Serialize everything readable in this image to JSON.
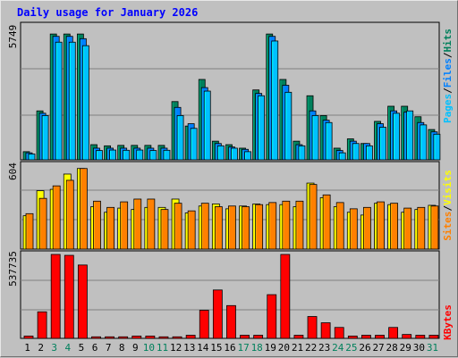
{
  "title": "Daily usage for January 2026",
  "colors": {
    "hits": "#00805c",
    "files": "#0080ff",
    "pages": "#00c0ff",
    "visits": "#ffff00",
    "sites": "#ff8000",
    "kbytes": "#ff0000",
    "title": "#0000ff",
    "weekend_day": "#00805c"
  },
  "chart_data": [
    {
      "type": "bar",
      "panel": "hits_files_pages",
      "categories": [
        "1",
        "2",
        "3",
        "4",
        "5",
        "6",
        "7",
        "8",
        "9",
        "10",
        "11",
        "12",
        "13",
        "14",
        "15",
        "16",
        "17",
        "18",
        "19",
        "20",
        "21",
        "22",
        "23",
        "24",
        "25",
        "26",
        "27",
        "28",
        "29",
        "30",
        "31"
      ],
      "weekend_days": [
        "3",
        "4",
        "10",
        "11",
        "17",
        "18",
        "24",
        "25",
        "31"
      ],
      "ymax_label": "5749",
      "ylim": [
        0,
        5749
      ],
      "series": [
        {
          "name": "Hits",
          "values": [
            350,
            2100,
            5400,
            5400,
            5400,
            650,
            600,
            620,
            620,
            620,
            620,
            2500,
            1450,
            3450,
            800,
            650,
            500,
            3000,
            5400,
            3450,
            800,
            2750,
            1900,
            500,
            900,
            700,
            1650,
            2300,
            2300,
            1850,
            1300
          ]
        },
        {
          "name": "Files",
          "values": [
            300,
            2000,
            5300,
            5300,
            5200,
            500,
            500,
            500,
            500,
            500,
            500,
            2250,
            1550,
            3100,
            700,
            550,
            450,
            2850,
            5300,
            3200,
            650,
            2100,
            1700,
            400,
            800,
            700,
            1550,
            2100,
            2050,
            1600,
            1200
          ]
        },
        {
          "name": "Pages",
          "values": [
            250,
            1900,
            5050,
            5050,
            4900,
            400,
            420,
            410,
            420,
            400,
            410,
            1900,
            1350,
            2950,
            600,
            500,
            350,
            2750,
            5100,
            2900,
            600,
            1900,
            1600,
            300,
            700,
            600,
            1400,
            2000,
            2100,
            1500,
            1100
          ]
        }
      ],
      "vertical_label": [
        "Pages",
        "Files",
        "Hits"
      ]
    },
    {
      "type": "bar",
      "panel": "visits_sites",
      "categories": [
        "1",
        "2",
        "3",
        "4",
        "5",
        "6",
        "7",
        "8",
        "9",
        "10",
        "11",
        "12",
        "13",
        "14",
        "15",
        "16",
        "17",
        "18",
        "19",
        "20",
        "21",
        "22",
        "23",
        "24",
        "25",
        "26",
        "27",
        "28",
        "29",
        "30",
        "31"
      ],
      "ymax_label": "604",
      "ylim": [
        0,
        604
      ],
      "series": [
        {
          "name": "Visits",
          "values": [
            240,
            420,
            430,
            540,
            580,
            305,
            265,
            295,
            285,
            300,
            300,
            360,
            260,
            310,
            325,
            290,
            310,
            325,
            320,
            320,
            305,
            475,
            370,
            305,
            265,
            245,
            330,
            320,
            265,
            285,
            315
          ]
        },
        {
          "name": "Sites",
          "values": [
            255,
            365,
            455,
            495,
            580,
            345,
            300,
            340,
            360,
            360,
            285,
            330,
            275,
            330,
            305,
            310,
            305,
            320,
            335,
            345,
            345,
            465,
            390,
            335,
            290,
            300,
            340,
            330,
            295,
            300,
            310
          ]
        }
      ],
      "vertical_label": [
        "Sites",
        "Visits"
      ]
    },
    {
      "type": "bar",
      "panel": "kbytes",
      "categories": [
        "1",
        "2",
        "3",
        "4",
        "5",
        "6",
        "7",
        "8",
        "9",
        "10",
        "11",
        "12",
        "13",
        "14",
        "15",
        "16",
        "17",
        "18",
        "19",
        "20",
        "21",
        "22",
        "23",
        "24",
        "25",
        "26",
        "27",
        "28",
        "29",
        "30",
        "31"
      ],
      "ymax_label": "537735",
      "ylim": [
        0,
        537735
      ],
      "series": [
        {
          "name": "KBytes",
          "values": [
            15000,
            170000,
            537735,
            532000,
            470000,
            10000,
            10000,
            10000,
            15000,
            15000,
            10000,
            10000,
            20000,
            180000,
            310000,
            210000,
            20000,
            20000,
            280000,
            537735,
            20000,
            140000,
            100000,
            70000,
            15000,
            20000,
            20000,
            70000,
            25000,
            20000,
            20000
          ]
        }
      ],
      "vertical_label": [
        "KBytes"
      ]
    }
  ]
}
